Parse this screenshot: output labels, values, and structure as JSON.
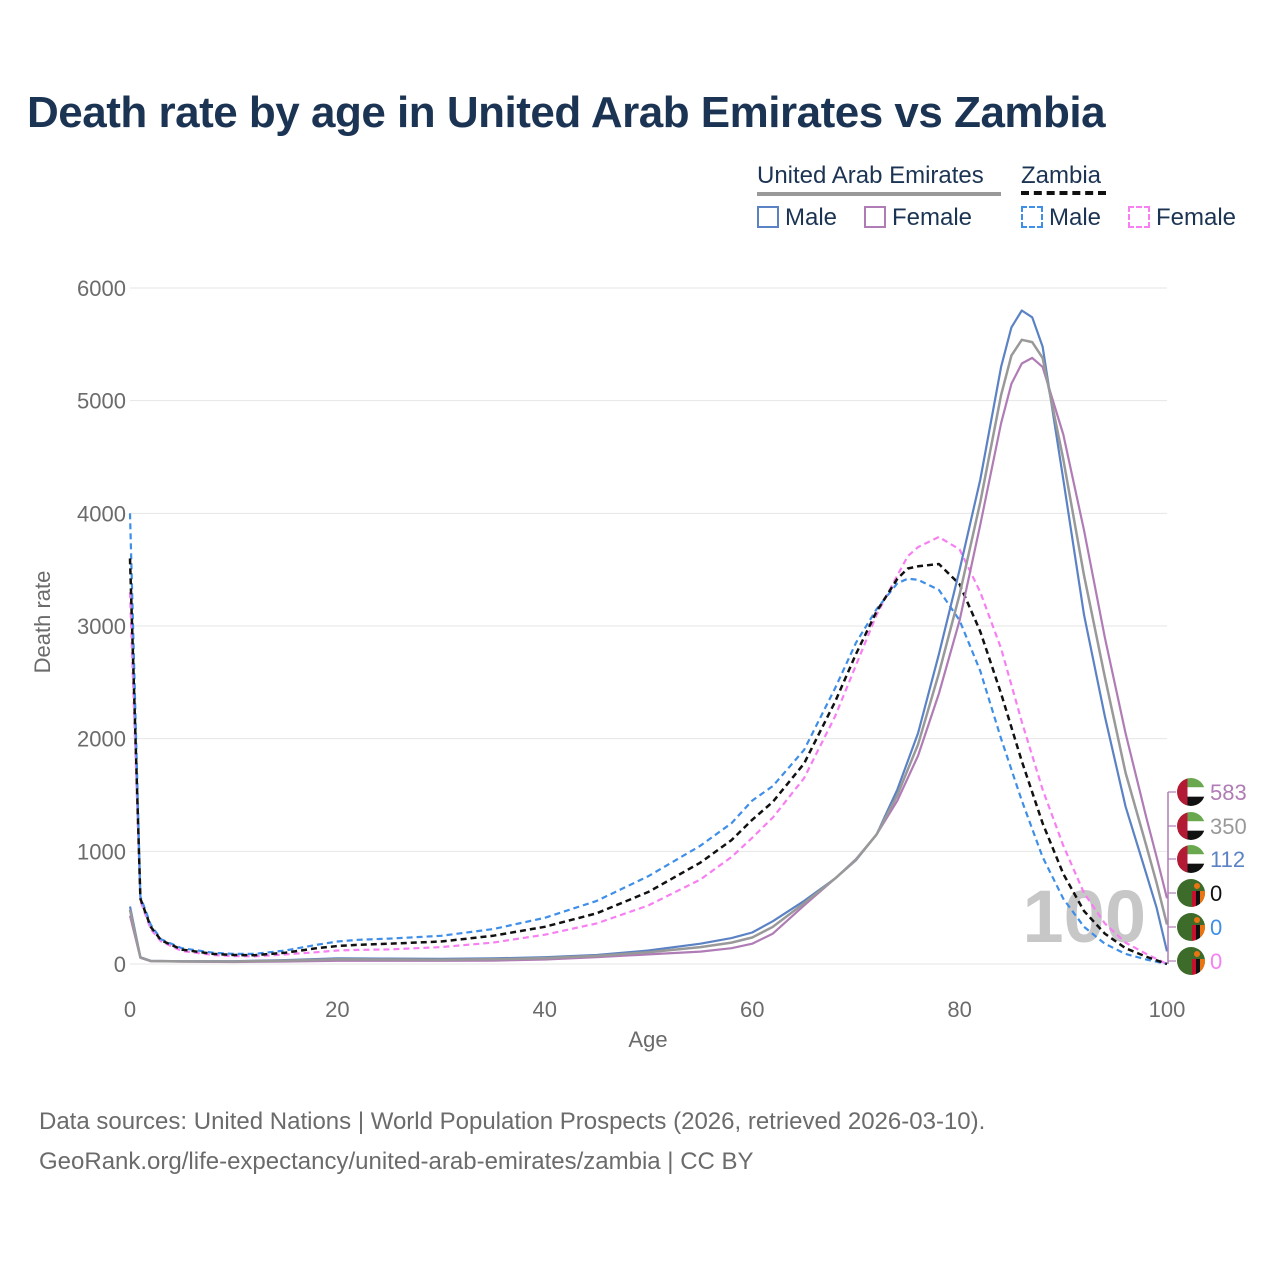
{
  "title": "Death rate by age in United Arab Emirates vs Zambia",
  "legend": {
    "uae_label": "United Arab Emirates",
    "zambia_label": "Zambia",
    "uae_male": "Male",
    "uae_female": "Female",
    "zambia_male": "Male",
    "zambia_female": "Female"
  },
  "colors": {
    "uae_male": "#5b82c4",
    "uae_female": "#b07cb5",
    "uae_total": "#999999",
    "zambia_male": "#3f8ee8",
    "zambia_female": "#f77ff2",
    "zambia_total": "#111111"
  },
  "source": {
    "line1": "Data sources: United Nations | World Population Prospects (2026, retrieved 2026-03-10).",
    "line2": "GeoRank.org/life-expectancy/united-arab-emirates/zambia | CC BY"
  },
  "chart_data": {
    "type": "line",
    "xlabel": "Age",
    "ylabel": "Death rate",
    "xlim": [
      0,
      100
    ],
    "ylim": [
      0,
      6000
    ],
    "x_ticks": [
      "0",
      "20",
      "40",
      "60",
      "80",
      "100"
    ],
    "y_ticks": [
      "0",
      "1000",
      "2000",
      "3000",
      "4000",
      "5000",
      "6000"
    ],
    "current_age_label": "100",
    "end_labels": [
      {
        "series": "uae_female",
        "value": "583"
      },
      {
        "series": "uae_total",
        "value": "350"
      },
      {
        "series": "uae_male",
        "value": "112"
      },
      {
        "series": "zambia_total",
        "value": "0"
      },
      {
        "series": "zambia_male",
        "value": "0"
      },
      {
        "series": "zambia_female",
        "value": "0"
      }
    ],
    "series": [
      {
        "key": "uae_male",
        "name": "United Arab Emirates Male",
        "dashed": false,
        "points": [
          [
            0,
            510
          ],
          [
            1,
            60
          ],
          [
            2,
            28
          ],
          [
            5,
            25
          ],
          [
            10,
            25
          ],
          [
            15,
            35
          ],
          [
            20,
            50
          ],
          [
            25,
            48
          ],
          [
            30,
            45
          ],
          [
            35,
            50
          ],
          [
            40,
            60
          ],
          [
            45,
            80
          ],
          [
            50,
            120
          ],
          [
            55,
            180
          ],
          [
            58,
            230
          ],
          [
            60,
            280
          ],
          [
            62,
            380
          ],
          [
            65,
            560
          ],
          [
            68,
            760
          ],
          [
            70,
            920
          ],
          [
            72,
            1150
          ],
          [
            74,
            1550
          ],
          [
            76,
            2050
          ],
          [
            78,
            2750
          ],
          [
            80,
            3500
          ],
          [
            82,
            4300
          ],
          [
            84,
            5300
          ],
          [
            85,
            5650
          ],
          [
            86,
            5800
          ],
          [
            87,
            5740
          ],
          [
            88,
            5480
          ],
          [
            90,
            4300
          ],
          [
            92,
            3100
          ],
          [
            94,
            2200
          ],
          [
            96,
            1400
          ],
          [
            98,
            800
          ],
          [
            99,
            500
          ],
          [
            100,
            112
          ]
        ]
      },
      {
        "key": "uae_female",
        "name": "United Arab Emirates Female",
        "dashed": false,
        "points": [
          [
            0,
            430
          ],
          [
            1,
            55
          ],
          [
            2,
            25
          ],
          [
            5,
            20
          ],
          [
            10,
            18
          ],
          [
            15,
            22
          ],
          [
            20,
            28
          ],
          [
            25,
            28
          ],
          [
            30,
            28
          ],
          [
            35,
            30
          ],
          [
            40,
            40
          ],
          [
            45,
            60
          ],
          [
            50,
            85
          ],
          [
            55,
            110
          ],
          [
            58,
            140
          ],
          [
            60,
            180
          ],
          [
            62,
            270
          ],
          [
            65,
            520
          ],
          [
            68,
            760
          ],
          [
            70,
            930
          ],
          [
            72,
            1150
          ],
          [
            74,
            1450
          ],
          [
            76,
            1850
          ],
          [
            78,
            2400
          ],
          [
            80,
            3050
          ],
          [
            82,
            3900
          ],
          [
            84,
            4800
          ],
          [
            85,
            5150
          ],
          [
            86,
            5330
          ],
          [
            87,
            5380
          ],
          [
            88,
            5300
          ],
          [
            90,
            4700
          ],
          [
            92,
            3850
          ],
          [
            94,
            2900
          ],
          [
            96,
            2050
          ],
          [
            98,
            1300
          ],
          [
            99,
            950
          ],
          [
            100,
            583
          ]
        ]
      },
      {
        "key": "uae_total",
        "name": "United Arab Emirates",
        "dashed": false,
        "points": [
          [
            0,
            480
          ],
          [
            1,
            58
          ],
          [
            2,
            27
          ],
          [
            5,
            23
          ],
          [
            10,
            22
          ],
          [
            15,
            30
          ],
          [
            20,
            42
          ],
          [
            25,
            40
          ],
          [
            30,
            38
          ],
          [
            35,
            42
          ],
          [
            40,
            52
          ],
          [
            45,
            72
          ],
          [
            50,
            105
          ],
          [
            55,
            150
          ],
          [
            58,
            190
          ],
          [
            60,
            235
          ],
          [
            62,
            330
          ],
          [
            65,
            540
          ],
          [
            68,
            760
          ],
          [
            70,
            925
          ],
          [
            72,
            1150
          ],
          [
            74,
            1500
          ],
          [
            76,
            1950
          ],
          [
            78,
            2580
          ],
          [
            80,
            3280
          ],
          [
            82,
            4100
          ],
          [
            84,
            5050
          ],
          [
            85,
            5400
          ],
          [
            86,
            5540
          ],
          [
            87,
            5520
          ],
          [
            88,
            5380
          ],
          [
            90,
            4480
          ],
          [
            92,
            3450
          ],
          [
            94,
            2550
          ],
          [
            96,
            1700
          ],
          [
            98,
            1050
          ],
          [
            99,
            720
          ],
          [
            100,
            350
          ]
        ]
      },
      {
        "key": "zambia_male",
        "name": "Zambia Male",
        "dashed": true,
        "points": [
          [
            0,
            4000
          ],
          [
            1,
            600
          ],
          [
            2,
            350
          ],
          [
            3,
            220
          ],
          [
            5,
            140
          ],
          [
            8,
            100
          ],
          [
            10,
            90
          ],
          [
            12,
            90
          ],
          [
            15,
            120
          ],
          [
            18,
            170
          ],
          [
            20,
            200
          ],
          [
            22,
            215
          ],
          [
            25,
            225
          ],
          [
            30,
            250
          ],
          [
            35,
            310
          ],
          [
            40,
            410
          ],
          [
            45,
            560
          ],
          [
            50,
            780
          ],
          [
            55,
            1050
          ],
          [
            58,
            1250
          ],
          [
            60,
            1450
          ],
          [
            62,
            1580
          ],
          [
            65,
            1900
          ],
          [
            68,
            2450
          ],
          [
            70,
            2850
          ],
          [
            72,
            3150
          ],
          [
            74,
            3380
          ],
          [
            75,
            3420
          ],
          [
            76,
            3410
          ],
          [
            78,
            3320
          ],
          [
            80,
            3050
          ],
          [
            82,
            2600
          ],
          [
            84,
            2000
          ],
          [
            86,
            1450
          ],
          [
            88,
            950
          ],
          [
            90,
            580
          ],
          [
            92,
            330
          ],
          [
            94,
            180
          ],
          [
            96,
            90
          ],
          [
            98,
            40
          ],
          [
            100,
            0
          ]
        ]
      },
      {
        "key": "zambia_female",
        "name": "Zambia Female",
        "dashed": true,
        "points": [
          [
            0,
            3300
          ],
          [
            1,
            560
          ],
          [
            2,
            310
          ],
          [
            3,
            200
          ],
          [
            5,
            115
          ],
          [
            8,
            80
          ],
          [
            10,
            70
          ],
          [
            12,
            68
          ],
          [
            15,
            85
          ],
          [
            18,
            105
          ],
          [
            20,
            120
          ],
          [
            22,
            125
          ],
          [
            25,
            130
          ],
          [
            30,
            150
          ],
          [
            35,
            190
          ],
          [
            40,
            260
          ],
          [
            45,
            360
          ],
          [
            50,
            520
          ],
          [
            55,
            750
          ],
          [
            58,
            950
          ],
          [
            60,
            1120
          ],
          [
            62,
            1300
          ],
          [
            65,
            1650
          ],
          [
            68,
            2200
          ],
          [
            70,
            2650
          ],
          [
            72,
            3100
          ],
          [
            74,
            3450
          ],
          [
            75,
            3620
          ],
          [
            76,
            3700
          ],
          [
            78,
            3790
          ],
          [
            80,
            3680
          ],
          [
            82,
            3300
          ],
          [
            84,
            2800
          ],
          [
            86,
            2150
          ],
          [
            88,
            1550
          ],
          [
            90,
            1050
          ],
          [
            92,
            630
          ],
          [
            94,
            360
          ],
          [
            96,
            190
          ],
          [
            98,
            90
          ],
          [
            100,
            0
          ]
        ]
      },
      {
        "key": "zambia_total",
        "name": "Zambia",
        "dashed": true,
        "points": [
          [
            0,
            3600
          ],
          [
            1,
            580
          ],
          [
            2,
            330
          ],
          [
            3,
            210
          ],
          [
            5,
            128
          ],
          [
            8,
            90
          ],
          [
            10,
            80
          ],
          [
            12,
            78
          ],
          [
            15,
            100
          ],
          [
            18,
            140
          ],
          [
            20,
            160
          ],
          [
            22,
            170
          ],
          [
            25,
            180
          ],
          [
            30,
            200
          ],
          [
            35,
            250
          ],
          [
            40,
            330
          ],
          [
            45,
            450
          ],
          [
            50,
            640
          ],
          [
            55,
            900
          ],
          [
            58,
            1100
          ],
          [
            60,
            1280
          ],
          [
            62,
            1440
          ],
          [
            65,
            1780
          ],
          [
            68,
            2330
          ],
          [
            70,
            2750
          ],
          [
            72,
            3130
          ],
          [
            74,
            3420
          ],
          [
            75,
            3510
          ],
          [
            76,
            3530
          ],
          [
            78,
            3550
          ],
          [
            80,
            3370
          ],
          [
            82,
            2950
          ],
          [
            84,
            2400
          ],
          [
            86,
            1800
          ],
          [
            88,
            1250
          ],
          [
            90,
            800
          ],
          [
            92,
            470
          ],
          [
            94,
            270
          ],
          [
            96,
            140
          ],
          [
            98,
            65
          ],
          [
            100,
            0
          ]
        ]
      }
    ]
  }
}
